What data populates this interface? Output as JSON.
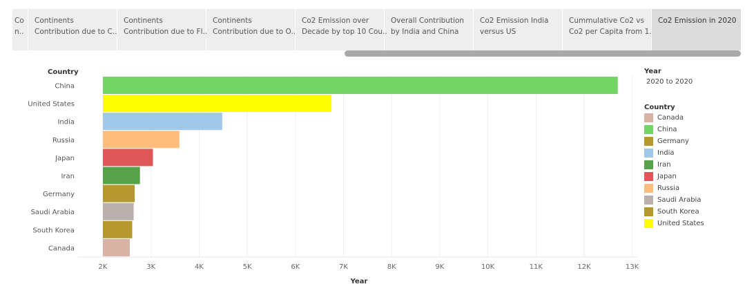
{
  "tabs": [
    {
      "line1": "Co",
      "line2": "n..",
      "active": false
    },
    {
      "line1": "Continents",
      "line2": "Contribution due to C..",
      "active": false
    },
    {
      "line1": "Continents",
      "line2": "Contribution due to Fl..",
      "active": false
    },
    {
      "line1": "Continents",
      "line2": "Contribution due to O..",
      "active": false
    },
    {
      "line1": "Co2 Emission over",
      "line2": "Decade by top 10 Cou..",
      "active": false
    },
    {
      "line1": "Overall Contribution",
      "line2": "by India and China",
      "active": false
    },
    {
      "line1": "Co2 Emission India",
      "line2": "versus US",
      "active": false
    },
    {
      "line1": "Cummulative Co2 vs",
      "line2": "Co2 per Capita from 1..",
      "active": false
    },
    {
      "line1": "Co2 Emission in 2020",
      "line2": "",
      "active": true
    }
  ],
  "legend": {
    "year_title": "Year",
    "year_value": "2020 to 2020",
    "country_title": "Country",
    "items": [
      {
        "label": "Canada",
        "color": "#d9b2a6"
      },
      {
        "label": "China",
        "color": "#74d566"
      },
      {
        "label": "Germany",
        "color": "#b5992e"
      },
      {
        "label": "India",
        "color": "#a0c8e8"
      },
      {
        "label": "Iran",
        "color": "#56a14a"
      },
      {
        "label": "Japan",
        "color": "#e05759"
      },
      {
        "label": "Russia",
        "color": "#ffbd7e"
      },
      {
        "label": "Saudi Arabia",
        "color": "#bab0ac"
      },
      {
        "label": "South Korea",
        "color": "#b5992e"
      },
      {
        "label": "United States",
        "color": "#ffff00"
      }
    ]
  },
  "chart_data": {
    "type": "bar",
    "orientation": "horizontal",
    "ylabel": "Country",
    "xlabel": "Year",
    "categories": [
      "China",
      "United States",
      "India",
      "Russia",
      "Japan",
      "Iran",
      "Germany",
      "Saudi Arabia",
      "South Korea",
      "Canada"
    ],
    "values": [
      12700,
      6750,
      4480,
      3590,
      3040,
      2770,
      2660,
      2640,
      2610,
      2560
    ],
    "colors": [
      "#74d566",
      "#ffff00",
      "#a0c8e8",
      "#ffbd7e",
      "#e05759",
      "#56a14a",
      "#b5992e",
      "#bab0ac",
      "#b5992e",
      "#d9b2a6"
    ],
    "xlim": [
      1780,
      13000
    ],
    "xticks": [
      2000,
      3000,
      4000,
      5000,
      6000,
      7000,
      8000,
      9000,
      10000,
      11000,
      12000,
      13000
    ],
    "xtick_labels": [
      "2K",
      "3K",
      "4K",
      "5K",
      "6K",
      "7K",
      "8K",
      "9K",
      "10K",
      "11K",
      "12K",
      "13K"
    ],
    "grid": true,
    "legend_position": "right"
  }
}
